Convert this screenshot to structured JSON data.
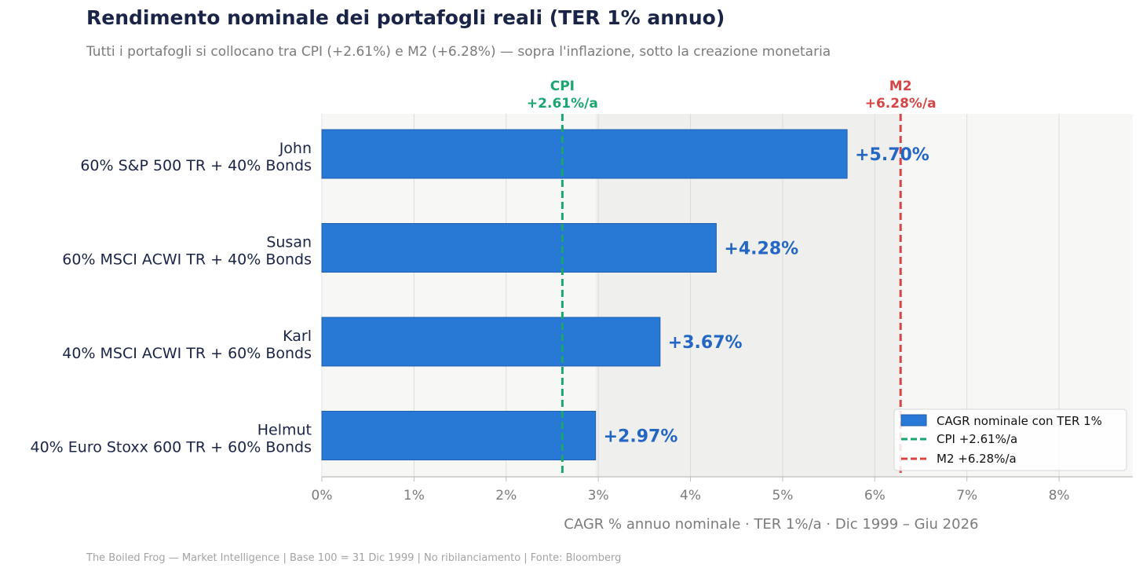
{
  "title": "Rendimento nominale dei portafogli reali (TER 1% annuo)",
  "subtitle": "Tutti i portafogli si collocano tra CPI (+2.61%) e M2 (+6.28%) — sopra l'inflazione, sotto la creazione monetaria",
  "footer": "The Boiled Frog — Market Intelligence  |  Base 100 = 31 Dic 1999  |  No ribilanciamento  |  Fonte: Bloomberg",
  "colors": {
    "bar": "#2878d6",
    "bar_edge": "#1f5fae",
    "value_label": "#2366c4",
    "cpi": "#1aa571",
    "m2": "#d64545",
    "plot_bg": "#f7f7f5",
    "band_bg": "#efefed",
    "grid": "#dcdcdc",
    "text_dark": "#1a2447"
  },
  "chart_data": {
    "type": "bar",
    "orientation": "horizontal",
    "title": "Rendimento nominale dei portafogli reali (TER 1% annuo)",
    "categories": [
      {
        "name": "John",
        "desc": "60% S&P 500 TR + 40% Bonds"
      },
      {
        "name": "Susan",
        "desc": "60% MSCI ACWI TR + 40% Bonds"
      },
      {
        "name": "Karl",
        "desc": "40% MSCI ACWI TR + 60% Bonds"
      },
      {
        "name": "Helmut",
        "desc": "40% Euro Stoxx 600 TR + 60% Bonds"
      }
    ],
    "values": [
      5.7,
      4.28,
      3.67,
      2.97
    ],
    "value_labels": [
      "+5.70%",
      "+4.28%",
      "+3.67%",
      "+2.97%"
    ],
    "xlim": [
      0,
      8.8
    ],
    "xticks": [
      0,
      1,
      2,
      3,
      4,
      5,
      6,
      7,
      8
    ],
    "xtick_labels": [
      "0%",
      "1%",
      "2%",
      "3%",
      "4%",
      "5%",
      "6%",
      "7%",
      "8%"
    ],
    "xlabel": "CAGR % annuo nominale  ·  TER 1%/a  ·  Dic 1999 – Giu 2026",
    "reference_lines": [
      {
        "key": "cpi",
        "value": 2.61,
        "name": "CPI",
        "label": "+2.61%/a",
        "legend": "CPI +2.61%/a"
      },
      {
        "key": "m2",
        "value": 6.28,
        "name": "M2",
        "label": "+6.28%/a",
        "legend": "M2 +6.28%/a"
      }
    ],
    "shaded_band": [
      2.97,
      6.28
    ],
    "legend": {
      "placement": "lower-right",
      "bar_entry": "CAGR nominale con TER 1%"
    },
    "grid": true
  }
}
